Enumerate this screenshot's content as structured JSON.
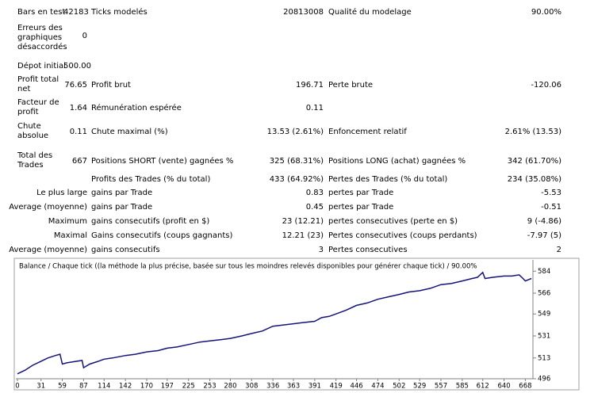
{
  "report": {
    "rows": [
      [
        "Bars en test",
        "42183",
        "Ticks modelés",
        "20813008",
        "Qualité du modelage",
        "90.00%"
      ],
      [
        "Erreurs des graphiques désaccordés",
        "0",
        null,
        null,
        null,
        null
      ],
      [
        "Dépot initial",
        "500.00",
        null,
        null,
        null,
        null
      ],
      [
        "Profit total net",
        "76.65",
        "Profit brut",
        "196.71",
        "Perte brute",
        "-120.06"
      ],
      [
        "Facteur de profit",
        "1.64",
        "Rémunération espérée",
        "0.11",
        null,
        null
      ],
      [
        "Chute absolue",
        "0.11",
        "Chute maximal (%)",
        "13.53 (2.61%)",
        "Enfoncement relatif",
        "2.61% (13.53)"
      ],
      [
        "Total des Trades",
        "667",
        "Positions SHORT (vente) gagnées %",
        "325 (68.31%)",
        "Positions LONG (achat) gagnées %",
        "342 (61.70%)"
      ],
      [
        null,
        null,
        "Profits des Trades (% du total)",
        "433 (64.92%)",
        "Pertes des Trades (% du total)",
        "234 (35.08%)"
      ],
      [
        "Le plus large",
        null,
        "gains par Trade",
        "0.83",
        "pertes par Trade",
        "-5.53"
      ],
      [
        "Average (moyenne)",
        null,
        "gains par Trade",
        "0.45",
        "pertes par Trade",
        "-0.51"
      ],
      [
        "Maximum",
        null,
        "gains consecutifs (profit en $)",
        "23 (12.21)",
        "pertes consecutives (perte en $)",
        "9 (-4.86)"
      ],
      [
        "Maximal",
        null,
        "Gains consecutifs (coups gagnants)",
        "12.21 (23)",
        "Pertes consecutives (coups perdants)",
        "-7.97 (5)"
      ],
      [
        "Average (moyenne)",
        null,
        "gains consecutifs",
        "3",
        "Pertes consecutives",
        "2"
      ]
    ]
  },
  "chart_data": {
    "type": "line",
    "title": "Balance / Chaque tick ((la méthode la plus précise, basée sur tous les moindres relevés disponibles pour générer chaque tick) / 90.00%",
    "color": "#14147a",
    "x": [
      0,
      10,
      20,
      30,
      40,
      50,
      56,
      59,
      65,
      75,
      85,
      87,
      95,
      105,
      114,
      125,
      142,
      155,
      170,
      185,
      197,
      210,
      225,
      240,
      253,
      268,
      280,
      295,
      308,
      322,
      336,
      350,
      363,
      377,
      391,
      400,
      410,
      419,
      432,
      446,
      460,
      474,
      488,
      502,
      515,
      529,
      543,
      557,
      571,
      585,
      598,
      605,
      612,
      615,
      625,
      640,
      650,
      660,
      665,
      668,
      672,
      676
    ],
    "values": [
      500,
      503,
      507,
      510,
      513,
      515,
      516,
      508,
      509,
      510,
      511,
      505,
      508,
      510,
      512,
      513,
      515,
      516,
      518,
      519,
      521,
      522,
      524,
      526,
      527,
      528,
      529,
      531,
      533,
      535,
      539,
      540,
      541,
      542,
      543,
      546,
      547,
      549,
      552,
      556,
      558,
      561,
      563,
      565,
      567,
      568,
      570,
      573,
      574,
      576,
      578,
      579,
      583,
      578,
      579,
      580,
      580,
      581,
      578,
      576,
      577,
      578
    ],
    "xlim": [
      0,
      678
    ],
    "ylim": [
      496,
      590
    ],
    "xticks": [
      0,
      31,
      59,
      87,
      114,
      142,
      170,
      197,
      225,
      253,
      280,
      308,
      336,
      363,
      391,
      419,
      446,
      474,
      502,
      529,
      557,
      585,
      612,
      640,
      668
    ],
    "yticks": [
      496,
      513,
      531,
      549,
      566,
      584
    ]
  }
}
